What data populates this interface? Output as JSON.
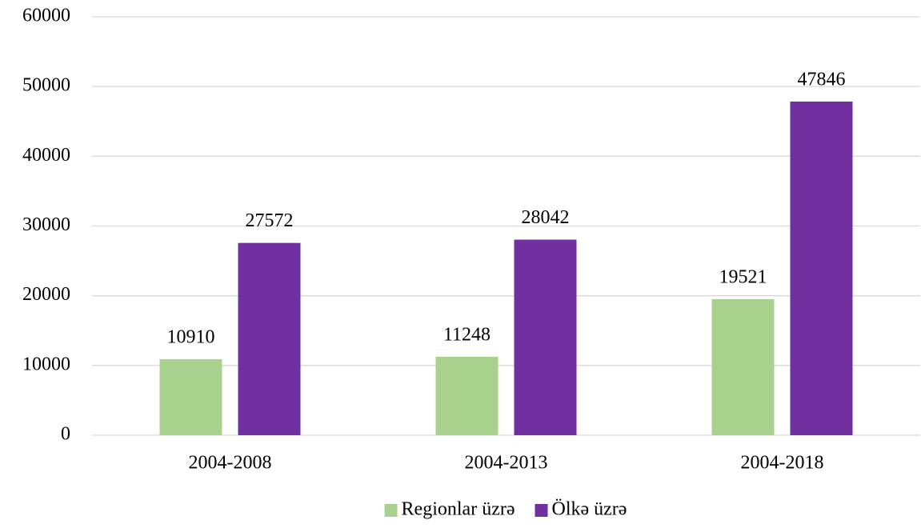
{
  "chart_data": {
    "type": "bar",
    "categories": [
      "2004-2008",
      "2004-2013",
      "2004-2018"
    ],
    "series": [
      {
        "name": "Regionlar üzrə",
        "color": "#a9d18e",
        "values": [
          10910,
          11248,
          19521
        ]
      },
      {
        "name": "Ölkə üzrə",
        "color": "#7030a0",
        "values": [
          27572,
          28042,
          47846
        ]
      }
    ],
    "ylim": [
      0,
      60000
    ],
    "yticks": [
      0,
      10000,
      20000,
      30000,
      40000,
      50000,
      60000
    ],
    "grid": true,
    "legend": "bottom"
  }
}
